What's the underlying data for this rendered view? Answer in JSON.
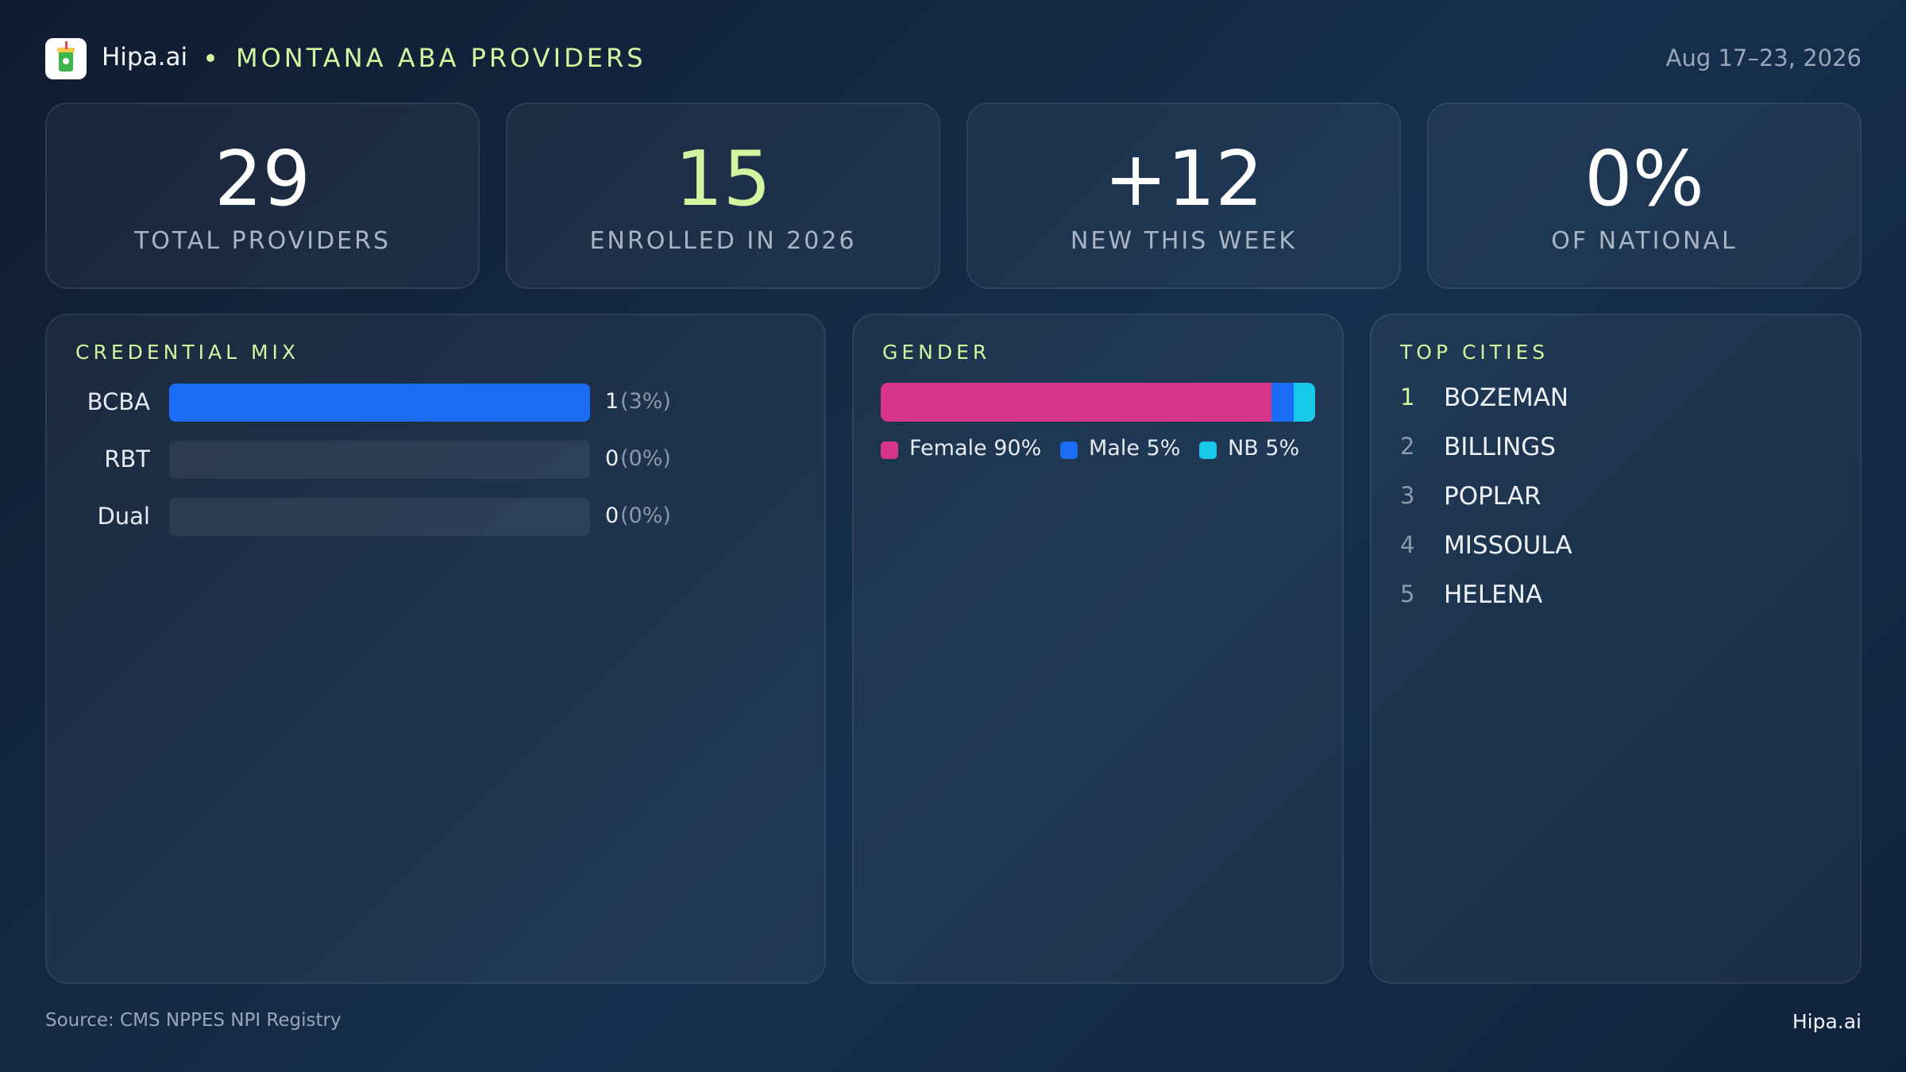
{
  "header": {
    "brand": "Hipa.ai",
    "title": "MONTANA ABA PROVIDERS",
    "date": "Aug 17–23, 2026"
  },
  "kpis": [
    {
      "value": 29,
      "label": "TOTAL PROVIDERS"
    },
    {
      "value": 15,
      "label": "ENROLLED IN 2026"
    },
    {
      "value": "+12",
      "label": "NEW THIS WEEK"
    },
    {
      "value": "0%",
      "label": "OF NATIONAL"
    }
  ],
  "credential_mix": {
    "title": "CREDENTIAL MIX",
    "color": "#1a6cf5",
    "rows": [
      {
        "name": "BCBA",
        "count": 1,
        "share_label": "(3%)"
      },
      {
        "name": "RBT",
        "count": 0,
        "share_label": "(0%)"
      },
      {
        "name": "Dual",
        "count": 0,
        "share_label": "(0%)"
      }
    ]
  },
  "gender": {
    "title": "GENDER",
    "segments": [
      {
        "name": "Female",
        "value": 90,
        "value_label": "Female 90%",
        "color": "#d6358a"
      },
      {
        "name": "Male",
        "value": 5,
        "value_label": "Male 5%",
        "color": "#1a6cf5"
      },
      {
        "name": "NB",
        "value": 5,
        "value_label": "NB 5%",
        "color": "#18c8e8"
      }
    ]
  },
  "top_cities": {
    "title": "TOP CITIES",
    "items": [
      {
        "rank": 1,
        "name": "BOZEMAN"
      },
      {
        "rank": 2,
        "name": "BILLINGS"
      },
      {
        "rank": 3,
        "name": "POPLAR"
      },
      {
        "rank": 4,
        "name": "MISSOULA"
      },
      {
        "rank": 5,
        "name": "HELENA"
      }
    ]
  },
  "footer": {
    "source": "Source: CMS NPPES NPI Registry",
    "brand": "Hipa.ai"
  }
}
